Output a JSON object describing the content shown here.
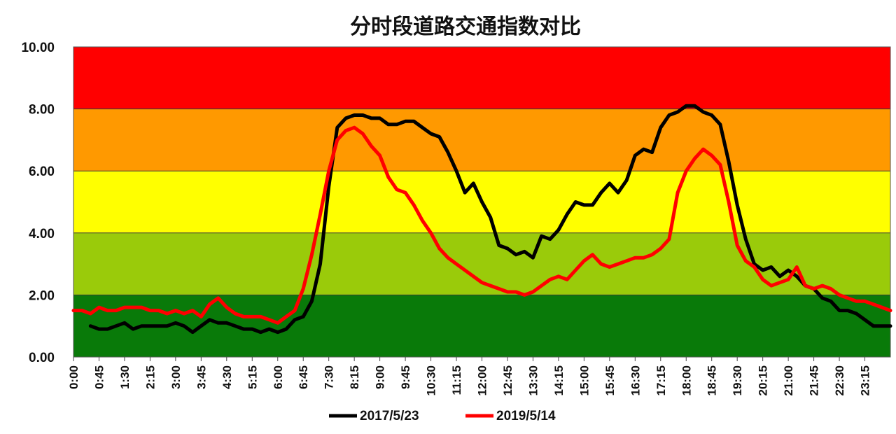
{
  "chart_data": {
    "type": "line",
    "title": "分时段道路交通指数对比",
    "xlabel": "",
    "ylabel": "",
    "ylim": [
      0,
      10
    ],
    "y_ticks": [
      "0.00",
      "2.00",
      "4.00",
      "6.00",
      "8.00",
      "10.00"
    ],
    "x_range": [
      0,
      24
    ],
    "x_tick_labels": [
      "0:00",
      "0:45",
      "1:30",
      "2:15",
      "3:00",
      "3:45",
      "4:30",
      "5:15",
      "6:00",
      "6:45",
      "7:30",
      "8:15",
      "9:00",
      "9:45",
      "10:30",
      "11:15",
      "12:00",
      "12:45",
      "13:30",
      "14:15",
      "15:00",
      "15:45",
      "16:30",
      "17:15",
      "18:00",
      "18:45",
      "19:30",
      "20:15",
      "21:00",
      "21:45",
      "22:30",
      "23:15"
    ],
    "bands": [
      {
        "from": 0,
        "to": 2,
        "color": "#097a09"
      },
      {
        "from": 2,
        "to": 4,
        "color": "#9acb0a"
      },
      {
        "from": 4,
        "to": 6,
        "color": "#ffff00"
      },
      {
        "from": 6,
        "to": 8,
        "color": "#ff9900"
      },
      {
        "from": 8,
        "to": 10,
        "color": "#ff0000"
      }
    ],
    "legend_position": "bottom",
    "series": [
      {
        "name": "2017/5/23",
        "color": "#000000",
        "x": [
          0.5,
          0.75,
          1.0,
          1.25,
          1.5,
          1.75,
          2.0,
          2.25,
          2.5,
          2.75,
          3.0,
          3.25,
          3.5,
          3.75,
          4.0,
          4.25,
          4.5,
          4.75,
          5.0,
          5.25,
          5.5,
          5.75,
          6.0,
          6.25,
          6.5,
          6.75,
          7.0,
          7.25,
          7.5,
          7.75,
          8.0,
          8.25,
          8.5,
          8.75,
          9.0,
          9.25,
          9.5,
          9.75,
          10.0,
          10.25,
          10.5,
          10.75,
          11.0,
          11.25,
          11.5,
          11.75,
          12.0,
          12.25,
          12.5,
          12.75,
          13.0,
          13.25,
          13.5,
          13.75,
          14.0,
          14.25,
          14.5,
          14.75,
          15.0,
          15.25,
          15.5,
          15.75,
          16.0,
          16.25,
          16.5,
          16.75,
          17.0,
          17.25,
          17.5,
          17.75,
          18.0,
          18.25,
          18.5,
          18.75,
          19.0,
          19.25,
          19.5,
          19.75,
          20.0,
          20.25,
          20.5,
          20.75,
          21.0,
          21.25,
          21.5,
          21.75,
          22.0,
          22.25,
          22.5,
          22.75,
          23.0,
          23.25,
          23.5,
          23.75,
          24.0
        ],
        "values": [
          1.0,
          0.9,
          0.9,
          1.0,
          1.1,
          0.9,
          1.0,
          1.0,
          1.0,
          1.0,
          1.1,
          1.0,
          0.8,
          1.0,
          1.2,
          1.1,
          1.1,
          1.0,
          0.9,
          0.9,
          0.8,
          0.9,
          0.8,
          0.9,
          1.2,
          1.3,
          1.8,
          3.0,
          5.5,
          7.4,
          7.7,
          7.8,
          7.8,
          7.7,
          7.7,
          7.5,
          7.5,
          7.6,
          7.6,
          7.4,
          7.2,
          7.1,
          6.6,
          6.0,
          5.3,
          5.6,
          5.0,
          4.5,
          3.6,
          3.5,
          3.3,
          3.4,
          3.2,
          3.9,
          3.8,
          4.1,
          4.6,
          5.0,
          4.9,
          4.9,
          5.3,
          5.6,
          5.3,
          5.7,
          6.5,
          6.7,
          6.6,
          7.4,
          7.8,
          7.9,
          8.1,
          8.1,
          7.9,
          7.8,
          7.5,
          6.3,
          4.9,
          3.8,
          3.0,
          2.8,
          2.9,
          2.6,
          2.8,
          2.6,
          2.3,
          2.2,
          1.9,
          1.8,
          1.5,
          1.5,
          1.4,
          1.2,
          1.0,
          1.0,
          1.0
        ]
      },
      {
        "name": "2019/5/14",
        "color": "#ff0000",
        "x": [
          0.0,
          0.25,
          0.5,
          0.75,
          1.0,
          1.25,
          1.5,
          1.75,
          2.0,
          2.25,
          2.5,
          2.75,
          3.0,
          3.25,
          3.5,
          3.75,
          4.0,
          4.25,
          4.5,
          4.75,
          5.0,
          5.25,
          5.5,
          5.75,
          6.0,
          6.25,
          6.5,
          6.75,
          7.0,
          7.25,
          7.5,
          7.75,
          8.0,
          8.25,
          8.5,
          8.75,
          9.0,
          9.25,
          9.5,
          9.75,
          10.0,
          10.25,
          10.5,
          10.75,
          11.0,
          11.25,
          11.5,
          11.75,
          12.0,
          12.25,
          12.5,
          12.75,
          13.0,
          13.25,
          13.5,
          13.75,
          14.0,
          14.25,
          14.5,
          14.75,
          15.0,
          15.25,
          15.5,
          15.75,
          16.0,
          16.25,
          16.5,
          16.75,
          17.0,
          17.25,
          17.5,
          17.75,
          18.0,
          18.25,
          18.5,
          18.75,
          19.0,
          19.25,
          19.5,
          19.75,
          20.0,
          20.25,
          20.5,
          20.75,
          21.0,
          21.25,
          21.5,
          21.75,
          22.0,
          22.25,
          22.5,
          22.75,
          23.0,
          23.25,
          23.5,
          23.75,
          24.0
        ],
        "values": [
          1.5,
          1.5,
          1.4,
          1.6,
          1.5,
          1.5,
          1.6,
          1.6,
          1.6,
          1.5,
          1.5,
          1.4,
          1.5,
          1.4,
          1.5,
          1.3,
          1.7,
          1.9,
          1.6,
          1.4,
          1.3,
          1.3,
          1.3,
          1.2,
          1.1,
          1.3,
          1.5,
          2.2,
          3.3,
          4.6,
          6.0,
          7.0,
          7.3,
          7.4,
          7.2,
          6.8,
          6.5,
          5.8,
          5.4,
          5.3,
          4.9,
          4.4,
          4.0,
          3.5,
          3.2,
          3.0,
          2.8,
          2.6,
          2.4,
          2.3,
          2.2,
          2.1,
          2.1,
          2.0,
          2.1,
          2.3,
          2.5,
          2.6,
          2.5,
          2.8,
          3.1,
          3.3,
          3.0,
          2.9,
          3.0,
          3.1,
          3.2,
          3.2,
          3.3,
          3.5,
          3.8,
          5.3,
          6.0,
          6.4,
          6.7,
          6.5,
          6.2,
          5.0,
          3.6,
          3.1,
          2.9,
          2.5,
          2.3,
          2.4,
          2.5,
          2.9,
          2.3,
          2.2,
          2.3,
          2.2,
          2.0,
          1.9,
          1.8,
          1.8,
          1.7,
          1.6,
          1.5
        ]
      }
    ]
  }
}
